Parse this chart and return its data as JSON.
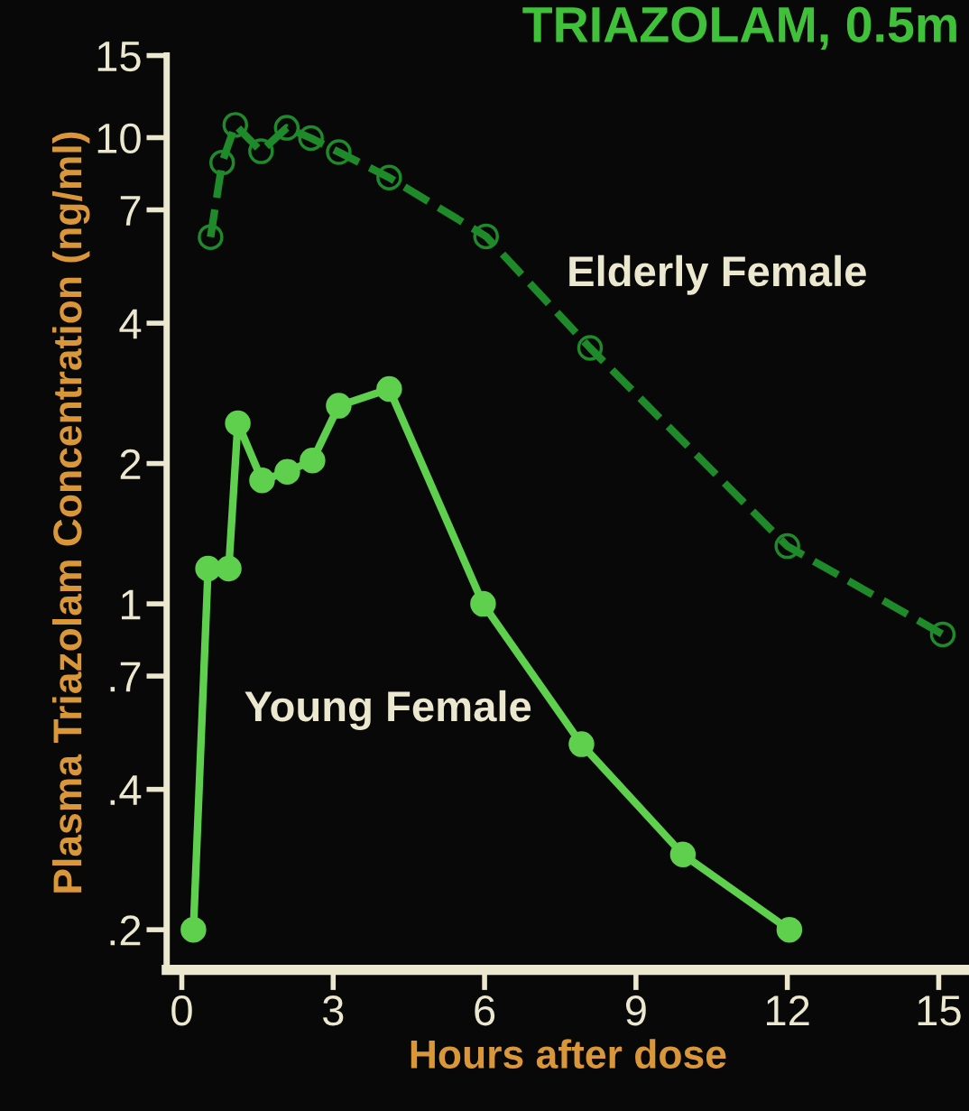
{
  "chart_data": {
    "type": "line",
    "title": "TRIAZOLAM, 0.5m",
    "xlabel": "Hours after dose",
    "ylabel": "Plasma Triazolam Concentration (ng/ml)",
    "log": "y",
    "xlim": [
      -0.3,
      15.6
    ],
    "ylim": [
      0.164,
      15
    ],
    "xticks": [
      0,
      3,
      6,
      9,
      12,
      15
    ],
    "yticks": [
      {
        "value": 0.2,
        "label": ".2"
      },
      {
        "value": 0.4,
        "label": ".4"
      },
      {
        "value": 0.7,
        "label": ".7"
      },
      1,
      2,
      4,
      7,
      10,
      15
    ],
    "grid": false,
    "legend": false,
    "series": [
      {
        "name": "Young Female",
        "color": "#5fd04e",
        "line_style": "solid",
        "marker": "circle",
        "x": [
          0.23,
          0.52,
          0.93,
          1.11,
          1.59,
          2.09,
          2.59,
          3.11,
          4.11,
          5.97,
          7.92,
          9.93,
          12.04
        ],
        "values": [
          0.2,
          1.19,
          1.19,
          2.44,
          1.84,
          1.92,
          2.03,
          2.66,
          2.89,
          1.0,
          0.5,
          0.29,
          0.2
        ]
      },
      {
        "name": "Elderly Female",
        "color": "#1f8a2a",
        "line_style": "dashed",
        "marker": "circle",
        "x": [
          0.57,
          0.8,
          1.06,
          1.57,
          2.08,
          2.56,
          3.11,
          4.11,
          6.03,
          8.09,
          12.0,
          15.08
        ],
        "values": [
          6.12,
          8.84,
          10.65,
          9.35,
          10.5,
          9.98,
          9.31,
          8.21,
          6.14,
          3.54,
          1.33,
          0.86
        ]
      }
    ]
  }
}
